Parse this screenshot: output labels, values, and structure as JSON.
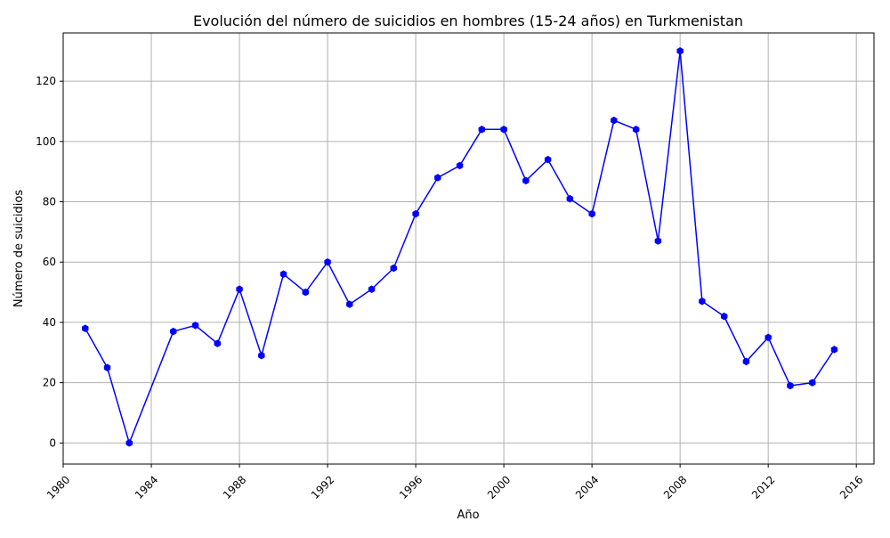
{
  "chart_data": {
    "type": "line",
    "title": "Evolución del número de suicidios en hombres (15-24 años) en Turkmenistan",
    "xlabel": "Año",
    "ylabel": "Número de suicidios",
    "xlim": [
      1980.0,
      2016.8
    ],
    "ylim": [
      -7,
      136
    ],
    "xticks": [
      1980,
      1984,
      1988,
      1992,
      1996,
      2000,
      2004,
      2008,
      2012,
      2016
    ],
    "yticks": [
      0,
      20,
      40,
      60,
      80,
      100,
      120
    ],
    "grid": true,
    "legend": "none",
    "line_color": "#0000ff",
    "marker": "hexagon",
    "series": [
      {
        "x": [
          1981,
          1982,
          1983,
          1985,
          1986,
          1987,
          1988,
          1989,
          1990,
          1991,
          1992,
          1993,
          1994,
          1995,
          1996,
          1997,
          1998,
          1999,
          2000,
          2001,
          2002,
          2003,
          2004,
          2005,
          2006,
          2007,
          2008,
          2009,
          2010,
          2011,
          2012,
          2013,
          2014,
          2015
        ],
        "values": [
          38,
          25,
          0,
          37,
          39,
          33,
          51,
          29,
          56,
          50,
          60,
          46,
          51,
          58,
          76,
          88,
          92,
          104,
          104,
          87,
          94,
          81,
          76,
          107,
          104,
          67,
          130,
          47,
          42,
          27,
          35,
          19,
          20,
          31
        ]
      }
    ]
  }
}
